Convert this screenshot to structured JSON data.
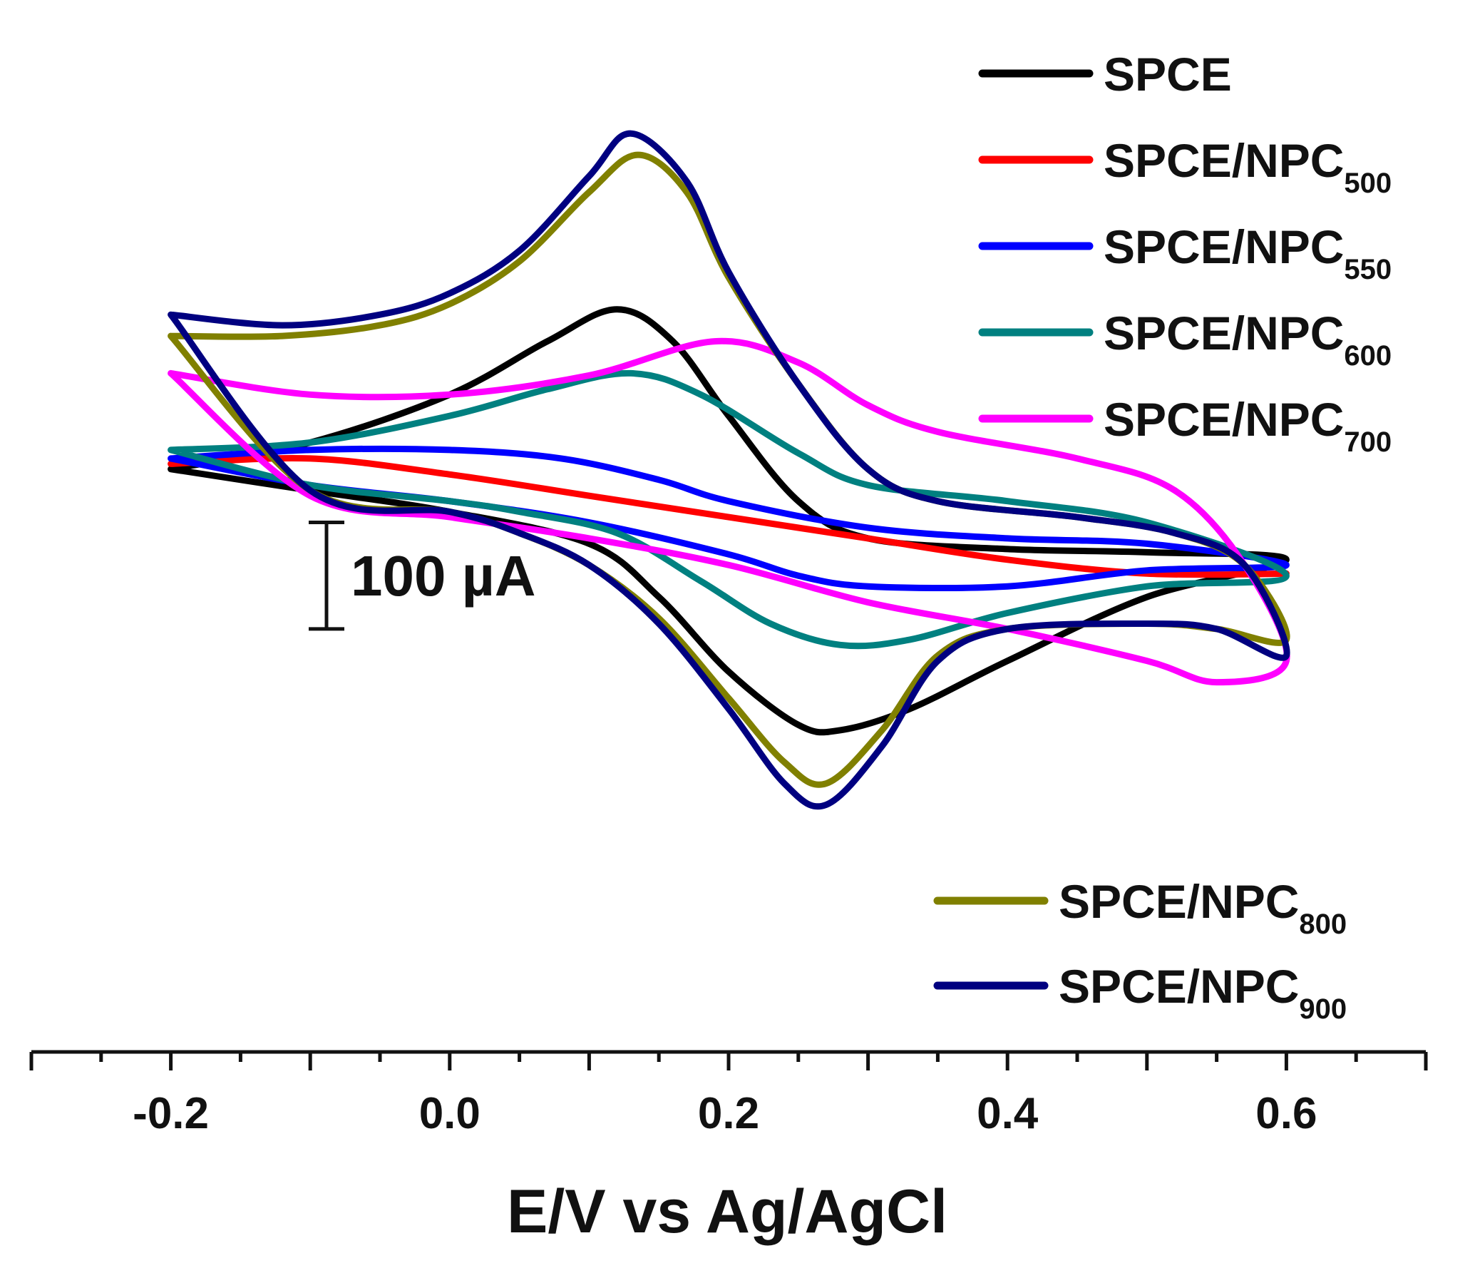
{
  "chart_data": {
    "type": "line",
    "title": "",
    "xlabel": "E/V vs Ag/AgCl",
    "ylabel": "",
    "xlim": [
      -0.3,
      0.7
    ],
    "ylim": [
      -410,
      420
    ],
    "x_ticks": [
      -0.2,
      0.0,
      0.2,
      0.4,
      0.6
    ],
    "x_tick_labels": [
      "-0.2",
      "0.0",
      "0.2",
      "0.4",
      "0.6"
    ],
    "grid": false,
    "scale_bar": {
      "label": "100 µA",
      "value": 100,
      "center_y": -40
    },
    "legend_top": {
      "placement": "top-right",
      "entries": [
        0,
        1,
        2,
        3,
        4
      ]
    },
    "legend_bottom": {
      "placement": "bottom-right",
      "entries": [
        5,
        6
      ]
    },
    "series": [
      {
        "name": "SPCE",
        "base": "SPCE",
        "sub": "",
        "color": "#000000",
        "forward": [
          [
            -0.2,
            60
          ],
          [
            -0.1,
            85
          ],
          [
            0.0,
            130
          ],
          [
            0.07,
            180
          ],
          [
            0.12,
            210
          ],
          [
            0.16,
            180
          ],
          [
            0.2,
            110
          ],
          [
            0.25,
            30
          ],
          [
            0.3,
            -5
          ],
          [
            0.4,
            -15
          ],
          [
            0.5,
            -18
          ],
          [
            0.6,
            -25
          ]
        ],
        "backward": [
          [
            0.6,
            -25
          ],
          [
            0.5,
            -60
          ],
          [
            0.4,
            -120
          ],
          [
            0.33,
            -165
          ],
          [
            0.28,
            -185
          ],
          [
            0.25,
            -180
          ],
          [
            0.2,
            -130
          ],
          [
            0.15,
            -60
          ],
          [
            0.1,
            -10
          ],
          [
            0.0,
            20
          ],
          [
            -0.1,
            40
          ],
          [
            -0.2,
            60
          ]
        ]
      },
      {
        "name": "SPCE/NPC500",
        "base": "SPCE/NPC",
        "sub": "500",
        "color": "#ff0000",
        "forward": [
          [
            -0.2,
            65
          ],
          [
            -0.1,
            70
          ],
          [
            0.0,
            55
          ],
          [
            0.1,
            35
          ],
          [
            0.2,
            15
          ],
          [
            0.3,
            -5
          ],
          [
            0.4,
            -25
          ],
          [
            0.5,
            -38
          ],
          [
            0.6,
            -38
          ]
        ],
        "backward": [
          [
            0.6,
            -38
          ],
          [
            0.5,
            -38
          ],
          [
            0.4,
            -25
          ],
          [
            0.3,
            -5
          ],
          [
            0.2,
            15
          ],
          [
            0.1,
            35
          ],
          [
            0.0,
            55
          ],
          [
            -0.1,
            70
          ],
          [
            -0.2,
            65
          ]
        ]
      },
      {
        "name": "SPCE/NPC550",
        "base": "SPCE/NPC",
        "sub": "550",
        "color": "#0000ff",
        "forward": [
          [
            -0.2,
            70
          ],
          [
            -0.1,
            78
          ],
          [
            0.0,
            78
          ],
          [
            0.08,
            70
          ],
          [
            0.15,
            50
          ],
          [
            0.2,
            30
          ],
          [
            0.3,
            5
          ],
          [
            0.4,
            -5
          ],
          [
            0.5,
            -10
          ],
          [
            0.6,
            -30
          ]
        ],
        "backward": [
          [
            0.6,
            -30
          ],
          [
            0.5,
            -35
          ],
          [
            0.4,
            -50
          ],
          [
            0.3,
            -50
          ],
          [
            0.25,
            -40
          ],
          [
            0.2,
            -20
          ],
          [
            0.1,
            10
          ],
          [
            0.0,
            30
          ],
          [
            -0.1,
            45
          ],
          [
            -0.2,
            70
          ]
        ]
      },
      {
        "name": "SPCE/NPC600",
        "base": "SPCE/NPC",
        "sub": "600",
        "color": "#008080",
        "forward": [
          [
            -0.2,
            78
          ],
          [
            -0.1,
            85
          ],
          [
            0.0,
            110
          ],
          [
            0.07,
            135
          ],
          [
            0.13,
            150
          ],
          [
            0.18,
            130
          ],
          [
            0.25,
            75
          ],
          [
            0.3,
            45
          ],
          [
            0.4,
            30
          ],
          [
            0.5,
            10
          ],
          [
            0.6,
            -40
          ]
        ],
        "backward": [
          [
            0.6,
            -60
          ],
          [
            0.5,
            -50
          ],
          [
            0.4,
            -75
          ],
          [
            0.33,
            -100
          ],
          [
            0.28,
            -105
          ],
          [
            0.23,
            -85
          ],
          [
            0.18,
            -45
          ],
          [
            0.12,
            0
          ],
          [
            0.05,
            20
          ],
          [
            0.0,
            30
          ],
          [
            -0.1,
            45
          ],
          [
            -0.2,
            78
          ]
        ]
      },
      {
        "name": "SPCE/NPC700",
        "base": "SPCE/NPC",
        "sub": "700",
        "color": "#ff00ff",
        "forward": [
          [
            -0.2,
            150
          ],
          [
            -0.1,
            130
          ],
          [
            0.0,
            130
          ],
          [
            0.1,
            148
          ],
          [
            0.19,
            180
          ],
          [
            0.25,
            160
          ],
          [
            0.3,
            120
          ],
          [
            0.35,
            95
          ],
          [
            0.45,
            70
          ],
          [
            0.52,
            40
          ],
          [
            0.57,
            -30
          ],
          [
            0.6,
            -120
          ]
        ],
        "backward": [
          [
            0.6,
            -155
          ],
          [
            0.55,
            -140
          ],
          [
            0.5,
            -120
          ],
          [
            0.4,
            -90
          ],
          [
            0.3,
            -65
          ],
          [
            0.2,
            -30
          ],
          [
            0.1,
            -5
          ],
          [
            0.0,
            15
          ],
          [
            -0.1,
            35
          ],
          [
            -0.2,
            150
          ]
        ]
      },
      {
        "name": "SPCE/NPC800",
        "base": "SPCE/NPC",
        "sub": "800",
        "color": "#808000",
        "forward": [
          [
            -0.2,
            185
          ],
          [
            -0.12,
            185
          ],
          [
            -0.05,
            195
          ],
          [
            0.0,
            215
          ],
          [
            0.05,
            255
          ],
          [
            0.1,
            320
          ],
          [
            0.135,
            355
          ],
          [
            0.17,
            320
          ],
          [
            0.2,
            240
          ],
          [
            0.25,
            140
          ],
          [
            0.3,
            60
          ],
          [
            0.35,
            30
          ],
          [
            0.45,
            15
          ],
          [
            0.52,
            0
          ],
          [
            0.57,
            -30
          ],
          [
            0.6,
            -100
          ]
        ],
        "backward": [
          [
            0.6,
            -100
          ],
          [
            0.55,
            -90
          ],
          [
            0.5,
            -85
          ],
          [
            0.4,
            -90
          ],
          [
            0.35,
            -115
          ],
          [
            0.31,
            -185
          ],
          [
            0.27,
            -235
          ],
          [
            0.24,
            -215
          ],
          [
            0.2,
            -155
          ],
          [
            0.15,
            -80
          ],
          [
            0.1,
            -30
          ],
          [
            0.05,
            0
          ],
          [
            0.0,
            20
          ],
          [
            -0.1,
            40
          ],
          [
            -0.2,
            185
          ]
        ]
      },
      {
        "name": "SPCE/NPC900",
        "base": "SPCE/NPC",
        "sub": "900",
        "color": "#000080",
        "forward": [
          [
            -0.2,
            205
          ],
          [
            -0.12,
            195
          ],
          [
            -0.05,
            205
          ],
          [
            0.0,
            225
          ],
          [
            0.05,
            265
          ],
          [
            0.1,
            335
          ],
          [
            0.13,
            375
          ],
          [
            0.17,
            330
          ],
          [
            0.2,
            245
          ],
          [
            0.25,
            140
          ],
          [
            0.3,
            60
          ],
          [
            0.35,
            30
          ],
          [
            0.45,
            15
          ],
          [
            0.52,
            0
          ],
          [
            0.57,
            -30
          ],
          [
            0.6,
            -115
          ]
        ],
        "backward": [
          [
            0.6,
            -115
          ],
          [
            0.55,
            -90
          ],
          [
            0.5,
            -85
          ],
          [
            0.4,
            -90
          ],
          [
            0.35,
            -120
          ],
          [
            0.31,
            -200
          ],
          [
            0.27,
            -255
          ],
          [
            0.24,
            -235
          ],
          [
            0.2,
            -165
          ],
          [
            0.15,
            -85
          ],
          [
            0.1,
            -30
          ],
          [
            0.05,
            0
          ],
          [
            0.0,
            20
          ],
          [
            -0.1,
            40
          ],
          [
            -0.2,
            205
          ]
        ]
      }
    ]
  }
}
